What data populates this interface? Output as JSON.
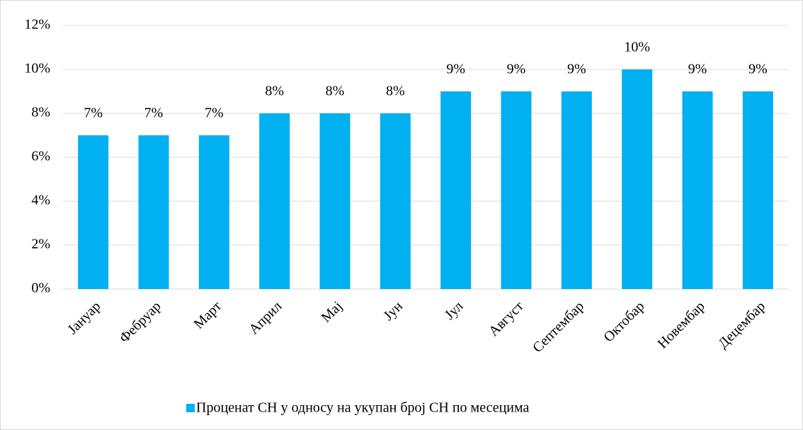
{
  "chart_data": {
    "type": "bar",
    "categories": [
      "Јануар",
      "Фебруар",
      "Март",
      "Април",
      "Мај",
      "Јун",
      "Јул",
      "Август",
      "Септембар",
      "Октобар",
      "Новембар",
      "Децембар"
    ],
    "series": [
      {
        "name": "Проценат СН у односу на укупан број СН по месецима",
        "color": "#00b0f0",
        "values": [
          7,
          7,
          7,
          8,
          8,
          8,
          9,
          9,
          9,
          10,
          9,
          9
        ],
        "value_labels": [
          "7%",
          "7%",
          "7%",
          "8%",
          "8%",
          "8%",
          "9%",
          "9%",
          "9%",
          "10%",
          "9%",
          "9%"
        ]
      }
    ],
    "ylim": [
      0,
      12
    ],
    "yticks": [
      {
        "value": 0,
        "label": "0%"
      },
      {
        "value": 2,
        "label": "2%"
      },
      {
        "value": 4,
        "label": "4%"
      },
      {
        "value": 6,
        "label": "6%"
      },
      {
        "value": 8,
        "label": "8%"
      },
      {
        "value": 10,
        "label": "10%"
      },
      {
        "value": 12,
        "label": "12%"
      }
    ],
    "grid": true,
    "legend": "bottom"
  }
}
